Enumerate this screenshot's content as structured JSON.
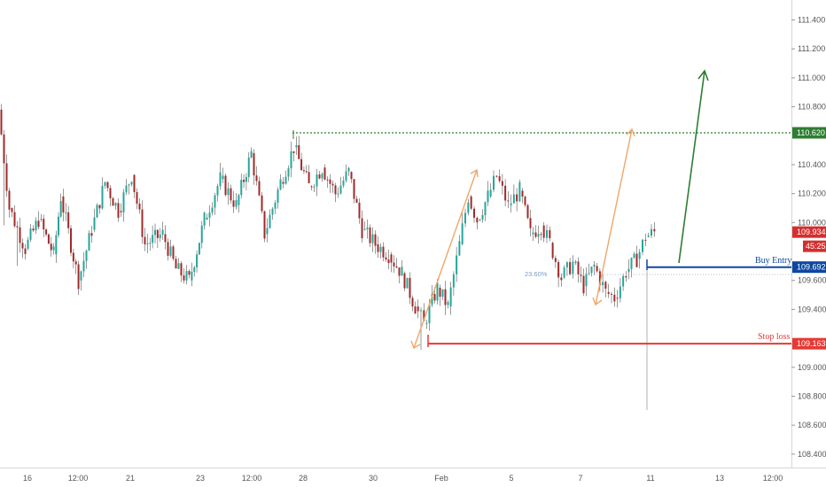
{
  "chart_data": {
    "type": "candlestick",
    "symbol_price_axis": {
      "ticks": [
        111.4,
        111.2,
        111.0,
        110.8,
        110.4,
        110.2,
        110.0,
        109.6,
        109.4,
        109.0,
        108.8,
        108.6,
        108.4
      ],
      "tick_labels": [
        "111.400",
        "111.200",
        "111.000",
        "110.800",
        "110.400",
        "110.200",
        "110.000",
        "109.600",
        "109.400",
        "109.000",
        "108.800",
        "108.600",
        "108.400"
      ],
      "ylim": [
        108.3,
        111.53
      ]
    },
    "time_axis": {
      "tick_labels": [
        "16",
        "12:00",
        "21",
        "23",
        "12:00",
        "28",
        "30",
        "Feb",
        "5",
        "7",
        "11",
        "13",
        "12:00"
      ]
    },
    "levels": {
      "target": {
        "value": 110.62,
        "label": "110.620",
        "color": "#2e7d32"
      },
      "buy_entry": {
        "value": 109.692,
        "label": "109.692",
        "text": "Buy Entry",
        "color": "#0d47a1"
      },
      "stop_loss": {
        "value": 109.163,
        "label": "109.163",
        "text": "Stop loss",
        "color": "#e53935"
      },
      "current_price": {
        "value": 109.934,
        "label": "109.934",
        "color": "#d32f2f"
      },
      "countdown": {
        "label": "45:25",
        "color": "#d32f2f"
      }
    },
    "fib_label": "23.60%",
    "colors": {
      "up": "#26a69a",
      "down": "#a12a2a",
      "wick": "#555555",
      "arrow_orange": "#f0a668",
      "arrow_green": "#2e7d32"
    },
    "candles": [
      {
        "seg": [
          0,
          12
        ],
        "o": 110.78,
        "c": 110.1,
        "lo": 109.98
      },
      {
        "seg": [
          12,
          30
        ],
        "o": 110.1,
        "c": 109.82,
        "lo": 109.7
      },
      {
        "seg": [
          30,
          45
        ],
        "o": 109.82,
        "c": 110.02
      },
      {
        "seg": [
          45,
          62
        ],
        "o": 110.02,
        "c": 109.78
      },
      {
        "seg": [
          62,
          70
        ],
        "o": 109.78,
        "c": 110.18
      },
      {
        "seg": [
          70,
          90
        ],
        "o": 110.18,
        "c": 109.6
      },
      {
        "seg": [
          90,
          105
        ],
        "o": 109.6,
        "c": 109.95
      },
      {
        "seg": [
          105,
          120
        ],
        "o": 109.95,
        "c": 110.28
      },
      {
        "seg": [
          120,
          135
        ],
        "o": 110.28,
        "c": 110.08
      },
      {
        "seg": [
          135,
          150
        ],
        "o": 110.08,
        "c": 110.33
      },
      {
        "seg": [
          150,
          165
        ],
        "o": 110.33,
        "c": 109.85
      },
      {
        "seg": [
          165,
          185
        ],
        "o": 109.85,
        "c": 109.92
      },
      {
        "seg": [
          185,
          200
        ],
        "o": 109.92,
        "c": 109.68
      },
      {
        "seg": [
          200,
          215
        ],
        "o": 109.68,
        "c": 109.6
      },
      {
        "seg": [
          215,
          232
        ],
        "o": 109.6,
        "c": 110.02
      },
      {
        "seg": [
          232,
          250
        ],
        "o": 110.02,
        "c": 110.3
      },
      {
        "seg": [
          250,
          268
        ],
        "o": 110.3,
        "c": 110.12
      },
      {
        "seg": [
          268,
          285
        ],
        "o": 110.12,
        "c": 110.48
      },
      {
        "seg": [
          285,
          300
        ],
        "o": 110.48,
        "c": 109.92
      },
      {
        "seg": [
          300,
          318
        ],
        "o": 109.92,
        "c": 110.28
      },
      {
        "seg": [
          318,
          333
        ],
        "o": 110.28,
        "c": 110.52
      },
      {
        "seg": [
          333,
          350
        ],
        "o": 110.52,
        "c": 110.25
      },
      {
        "seg": [
          350,
          365
        ],
        "o": 110.25,
        "c": 110.38
      },
      {
        "seg": [
          365,
          380
        ],
        "o": 110.38,
        "c": 110.2
      },
      {
        "seg": [
          380,
          395
        ],
        "o": 110.2,
        "c": 110.35
      },
      {
        "seg": [
          395,
          410
        ],
        "o": 110.35,
        "c": 109.95
      },
      {
        "seg": [
          410,
          425
        ],
        "o": 109.95,
        "c": 109.85
      },
      {
        "seg": [
          425,
          440
        ],
        "o": 109.85,
        "c": 109.78
      },
      {
        "seg": [
          440,
          455
        ],
        "o": 109.78,
        "c": 109.65
      },
      {
        "seg": [
          455,
          470
        ],
        "o": 109.65,
        "c": 109.42
      },
      {
        "seg": [
          470,
          480
        ],
        "o": 109.42,
        "c": 109.3,
        "lo": 109.12
      },
      {
        "seg": [
          480,
          495
        ],
        "o": 109.3,
        "c": 109.55
      },
      {
        "seg": [
          495,
          507
        ],
        "o": 109.55,
        "c": 109.42
      },
      {
        "seg": [
          507,
          520
        ],
        "o": 109.42,
        "c": 109.85
      },
      {
        "seg": [
          520,
          530
        ],
        "o": 109.85,
        "c": 110.18
      },
      {
        "seg": [
          530,
          540
        ],
        "o": 110.18,
        "c": 110.02
      },
      {
        "seg": [
          540,
          552
        ],
        "o": 110.02,
        "c": 110.18
      },
      {
        "seg": [
          552,
          562
        ],
        "o": 110.18,
        "c": 110.32
      },
      {
        "seg": [
          562,
          575
        ],
        "o": 110.32,
        "c": 110.12
      },
      {
        "seg": [
          575,
          588
        ],
        "o": 110.12,
        "c": 110.22
      },
      {
        "seg": [
          588,
          600
        ],
        "o": 110.22,
        "c": 109.92
      },
      {
        "seg": [
          600,
          612
        ],
        "o": 109.92,
        "c": 109.98
      },
      {
        "seg": [
          612,
          622
        ],
        "o": 109.98,
        "c": 109.86
      },
      {
        "seg": [
          622,
          635
        ],
        "o": 109.86,
        "c": 109.62
      },
      {
        "seg": [
          635,
          648
        ],
        "o": 109.62,
        "c": 109.72
      },
      {
        "seg": [
          648,
          660
        ],
        "o": 109.72,
        "c": 109.56
      },
      {
        "seg": [
          660,
          672
        ],
        "o": 109.56,
        "c": 109.7
      },
      {
        "seg": [
          672,
          685
        ],
        "o": 109.7,
        "c": 109.52
      },
      {
        "seg": [
          685,
          695
        ],
        "o": 109.52,
        "c": 109.48
      },
      {
        "seg": [
          695,
          708
        ],
        "o": 109.48,
        "c": 109.66
      },
      {
        "seg": [
          708,
          720
        ],
        "o": 109.66,
        "c": 109.75
      },
      {
        "seg": [
          720,
          730
        ],
        "o": 109.75,
        "c": 109.9
      },
      {
        "seg": [
          730,
          740
        ],
        "o": 109.9,
        "c": 109.934
      }
    ]
  }
}
